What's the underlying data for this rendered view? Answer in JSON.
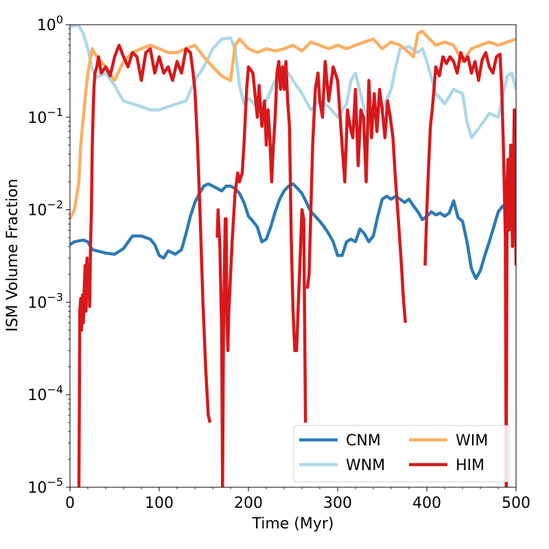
{
  "chart_data": {
    "type": "line",
    "title": "",
    "xlabel": "Time (Myr)",
    "ylabel": "ISM Volume Fraction",
    "xlim": [
      0,
      500
    ],
    "ylim": [
      1e-05,
      1
    ],
    "yscale": "log",
    "grid": false,
    "legend_position": "lower right",
    "legend_columns": 2,
    "xticks": [
      {
        "value": 0,
        "label": "0"
      },
      {
        "value": 100,
        "label": "100"
      },
      {
        "value": 200,
        "label": "200"
      },
      {
        "value": 300,
        "label": "300"
      },
      {
        "value": 400,
        "label": "400"
      },
      {
        "value": 500,
        "label": "500"
      }
    ],
    "yticks": [
      {
        "value": 1e-05,
        "base": "10",
        "exp": "−5"
      },
      {
        "value": 0.0001,
        "base": "10",
        "exp": "−4"
      },
      {
        "value": 0.001,
        "base": "10",
        "exp": "−3"
      },
      {
        "value": 0.01,
        "base": "10",
        "exp": "−2"
      },
      {
        "value": 0.1,
        "base": "10",
        "exp": "−1"
      },
      {
        "value": 1,
        "base": "10",
        "exp": "0"
      }
    ],
    "series": [
      {
        "name": "CNM",
        "color": "#2c7bb6",
        "x": [
          0,
          5,
          15,
          20,
          25,
          30,
          40,
          50,
          60,
          70,
          80,
          90,
          95,
          100,
          105,
          110,
          118,
          125,
          130,
          135,
          140,
          145,
          150,
          155,
          160,
          165,
          170,
          175,
          180,
          185,
          190,
          195,
          200,
          205,
          210,
          215,
          220,
          225,
          230,
          235,
          240,
          245,
          250,
          255,
          260,
          265,
          270,
          275,
          280,
          285,
          290,
          295,
          300,
          305,
          310,
          315,
          320,
          325,
          330,
          335,
          340,
          345,
          350,
          355,
          360,
          365,
          370,
          375,
          380,
          385,
          390,
          395,
          400,
          405,
          410,
          415,
          420,
          425,
          430,
          435,
          440,
          445,
          450,
          455,
          460,
          465,
          470,
          475,
          480,
          485,
          490,
          495,
          500
        ],
        "y": [
          0.0042,
          0.0045,
          0.0047,
          0.0045,
          0.0037,
          0.0036,
          0.0034,
          0.0033,
          0.0038,
          0.0052,
          0.0052,
          0.0048,
          0.0042,
          0.0032,
          0.003,
          0.0036,
          0.0033,
          0.0037,
          0.0055,
          0.0085,
          0.012,
          0.015,
          0.018,
          0.019,
          0.018,
          0.017,
          0.016,
          0.018,
          0.018,
          0.017,
          0.015,
          0.012,
          0.0085,
          0.0075,
          0.0065,
          0.0045,
          0.0048,
          0.0065,
          0.0095,
          0.013,
          0.016,
          0.018,
          0.019,
          0.017,
          0.015,
          0.012,
          0.0095,
          0.0085,
          0.0075,
          0.0065,
          0.0055,
          0.0045,
          0.0032,
          0.0032,
          0.0045,
          0.0048,
          0.0045,
          0.0062,
          0.0055,
          0.0045,
          0.0052,
          0.0085,
          0.013,
          0.014,
          0.013,
          0.014,
          0.013,
          0.012,
          0.013,
          0.011,
          0.0095,
          0.0078,
          0.0085,
          0.0095,
          0.0088,
          0.0092,
          0.0085,
          0.0092,
          0.0125,
          0.0082,
          0.0075,
          0.0045,
          0.0023,
          0.0018,
          0.0022,
          0.0032,
          0.0045,
          0.0065,
          0.0095,
          0.011,
          0.0095,
          0.012,
          0.013
        ]
      },
      {
        "name": "WNM",
        "color": "#abd9e9",
        "x": [
          0,
          5,
          10,
          15,
          20,
          25,
          30,
          40,
          50,
          55,
          60,
          70,
          80,
          90,
          100,
          110,
          120,
          130,
          140,
          150,
          160,
          170,
          180,
          185,
          190,
          195,
          200,
          210,
          220,
          230,
          240,
          250,
          260,
          270,
          280,
          290,
          300,
          310,
          315,
          320,
          330,
          340,
          350,
          360,
          365,
          370,
          380,
          390,
          395,
          400,
          410,
          420,
          430,
          440,
          445,
          450,
          460,
          470,
          480,
          490,
          495,
          500
        ],
        "y": [
          0.95,
          0.98,
          0.97,
          0.8,
          0.55,
          0.33,
          0.27,
          0.3,
          0.22,
          0.18,
          0.15,
          0.14,
          0.13,
          0.12,
          0.12,
          0.13,
          0.14,
          0.15,
          0.25,
          0.35,
          0.55,
          0.7,
          0.72,
          0.55,
          0.22,
          0.14,
          0.16,
          0.13,
          0.15,
          0.25,
          0.35,
          0.25,
          0.18,
          0.12,
          0.15,
          0.13,
          0.1,
          0.14,
          0.25,
          0.3,
          0.12,
          0.1,
          0.12,
          0.2,
          0.35,
          0.55,
          0.58,
          0.5,
          0.55,
          0.4,
          0.18,
          0.14,
          0.2,
          0.18,
          0.09,
          0.06,
          0.08,
          0.11,
          0.1,
          0.28,
          0.3,
          0.2
        ]
      },
      {
        "name": "WIM",
        "color": "#fdae61",
        "x": [
          0,
          5,
          10,
          12,
          15,
          18,
          20,
          25,
          30,
          40,
          50,
          60,
          70,
          80,
          90,
          100,
          110,
          120,
          130,
          140,
          150,
          160,
          170,
          180,
          185,
          190,
          200,
          210,
          220,
          230,
          240,
          250,
          260,
          270,
          280,
          290,
          300,
          310,
          320,
          330,
          340,
          350,
          360,
          370,
          380,
          385,
          390,
          395,
          400,
          410,
          420,
          430,
          440,
          450,
          460,
          470,
          480,
          490,
          500
        ],
        "y": [
          0.008,
          0.01,
          0.02,
          0.05,
          0.1,
          0.2,
          0.3,
          0.55,
          0.45,
          0.35,
          0.25,
          0.4,
          0.5,
          0.55,
          0.6,
          0.55,
          0.5,
          0.5,
          0.55,
          0.6,
          0.45,
          0.35,
          0.28,
          0.25,
          0.6,
          0.7,
          0.55,
          0.5,
          0.55,
          0.52,
          0.55,
          0.6,
          0.52,
          0.65,
          0.6,
          0.55,
          0.6,
          0.55,
          0.6,
          0.65,
          0.7,
          0.55,
          0.65,
          0.6,
          0.5,
          0.45,
          0.8,
          0.85,
          0.75,
          0.6,
          0.65,
          0.6,
          0.4,
          0.55,
          0.6,
          0.65,
          0.6,
          0.65,
          0.7
        ]
      },
      {
        "name": "HIM",
        "color": "#d7191c",
        "segments": [
          {
            "x": [
              10,
              11,
              12,
              13,
              14,
              15,
              16,
              17,
              18,
              19,
              20,
              21,
              22,
              23,
              24,
              25,
              26,
              27,
              28,
              30,
              32,
              35,
              40,
              45,
              50,
              55,
              60,
              65,
              70,
              75,
              80,
              85,
              90,
              95,
              100,
              105,
              110,
              115,
              120,
              125,
              130,
              135,
              138,
              140,
              143,
              146,
              149,
              152,
              155,
              157
            ],
            "y": [
              1e-05,
              0.0008,
              0.0011,
              0.0005,
              0.0012,
              0.0006,
              0.0015,
              0.0025,
              0.0008,
              0.003,
              0.0015,
              0.0025,
              0.0009,
              0.004,
              0.01,
              0.05,
              0.12,
              0.22,
              0.3,
              0.35,
              0.45,
              0.3,
              0.35,
              0.28,
              0.45,
              0.6,
              0.45,
              0.35,
              0.5,
              0.45,
              0.25,
              0.5,
              0.55,
              0.3,
              0.45,
              0.3,
              0.35,
              0.25,
              0.4,
              0.3,
              0.55,
              0.5,
              0.3,
              0.2,
              0.05,
              0.008,
              0.001,
              0.0002,
              6e-05,
              5e-05
            ]
          },
          {
            "x": [
              165,
              166,
              168,
              170,
              171,
              172,
              173,
              174,
              175,
              176,
              177,
              178,
              180,
              182,
              185,
              188,
              190,
              193,
              195,
              198,
              200,
              205,
              210,
              212,
              215,
              218,
              220,
              222,
              224,
              226,
              228,
              230,
              232,
              234,
              236,
              238,
              240,
              242,
              244,
              246,
              248,
              250,
              252,
              254,
              256,
              258,
              260,
              262,
              264
            ],
            "y": [
              0.005,
              0.01,
              0.004,
              0.0005,
              1e-05,
              0.0004,
              0.002,
              0.008,
              0.008,
              0.0006,
              0.0003,
              0.0008,
              0.002,
              0.005,
              0.015,
              0.025,
              0.02,
              0.025,
              0.05,
              0.2,
              0.35,
              0.3,
              0.1,
              0.22,
              0.08,
              0.15,
              0.05,
              0.12,
              0.06,
              0.02,
              0.05,
              0.1,
              0.3,
              0.4,
              0.2,
              0.35,
              0.2,
              0.4,
              0.15,
              0.08,
              0.005,
              0.0008,
              0.0003,
              0.0003,
              0.001,
              0.003,
              0.01,
              0.008,
              5e-05
            ]
          },
          {
            "x": [
              266,
              268,
              270,
              272,
              275,
              278,
              280,
              283,
              286,
              290,
              295,
              300,
              305,
              308,
              311,
              314,
              317,
              320,
              323,
              326,
              329,
              332,
              335,
              338,
              341,
              344,
              347,
              350,
              353,
              356,
              359,
              362,
              365,
              368,
              371,
              374,
              376
            ],
            "y": [
              0.0014,
              0.002,
              0.01,
              0.05,
              0.2,
              0.3,
              0.15,
              0.1,
              0.4,
              0.15,
              0.35,
              0.25,
              0.05,
              0.02,
              0.12,
              0.08,
              0.06,
              0.2,
              0.03,
              0.12,
              0.1,
              0.02,
              0.25,
              0.06,
              0.18,
              0.07,
              0.2,
              0.12,
              0.06,
              0.15,
              0.1,
              0.06,
              0.02,
              0.008,
              0.003,
              0.001,
              0.0006
            ]
          },
          {
            "x": [
              398,
              400,
              402,
              404,
              406,
              408,
              410,
              414,
              418,
              422,
              426,
              430,
              434,
              438,
              442,
              446,
              450,
              454,
              458,
              462,
              466,
              470,
              474,
              478,
              482,
              484,
              486,
              488,
              489,
              490,
              491,
              492,
              494,
              496,
              498,
              500
            ],
            "y": [
              0.0025,
              0.01,
              0.03,
              0.08,
              0.12,
              0.2,
              0.35,
              0.28,
              0.45,
              0.38,
              0.45,
              0.4,
              0.3,
              0.5,
              0.4,
              0.45,
              0.3,
              0.4,
              0.25,
              0.42,
              0.5,
              0.35,
              0.3,
              0.45,
              0.48,
              0.2,
              0.04,
              0.005,
              1e-05,
              0.02,
              0.035,
              0.006,
              0.05,
              0.004,
              0.12,
              0.0025
            ]
          }
        ]
      }
    ]
  }
}
